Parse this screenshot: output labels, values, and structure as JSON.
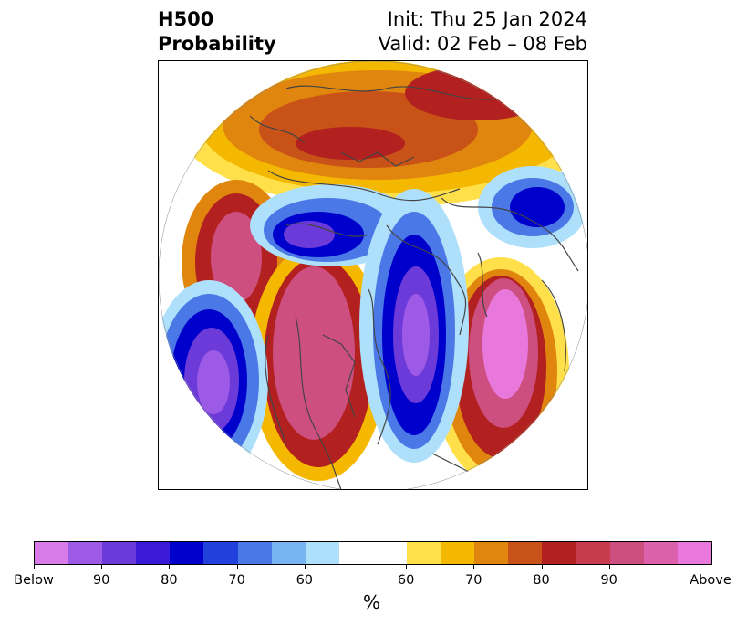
{
  "header": {
    "title_line1": "H500",
    "title_line2": "Probability",
    "init_text": "Init: Thu 25 Jan 2024",
    "valid_text": "Valid: 02 Feb – 08 Feb"
  },
  "colorbar": {
    "unit": "%",
    "colors": [
      "#d97be8",
      "#9c5ae6",
      "#6c3ad9",
      "#3a1ad8",
      "#0000cc",
      "#2240dc",
      "#4a78e6",
      "#78b4f2",
      "#aee0fb",
      "#ffffff",
      "#ffe04a",
      "#f5b800",
      "#e0860f",
      "#c85218",
      "#b22020",
      "#c83a4e",
      "#cc4f80",
      "#dc60ac",
      "#e878dc"
    ],
    "tick_labels": [
      "Below",
      "90",
      "80",
      "70",
      "60",
      "60",
      "70",
      "80",
      "90",
      "Above"
    ]
  },
  "map": {
    "projection": "north-polar-stereographic",
    "palette": {
      "above_high": "#e878dc",
      "above_mid": "#cc4f80",
      "above_low": "#b22020",
      "above_orange": "#e0860f",
      "above_yellow": "#f5b800",
      "neutral": "#ffffff",
      "below_light": "#aee0fb",
      "below_mid": "#4a78e6",
      "below_dark": "#0000cc",
      "below_high": "#9c5ae6",
      "borders": "#444444"
    }
  }
}
